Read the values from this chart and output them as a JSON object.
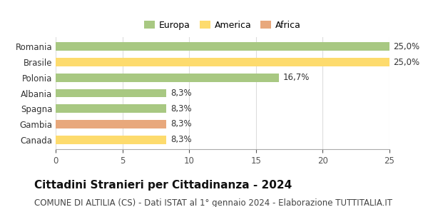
{
  "categories": [
    "Canada",
    "Gambia",
    "Spagna",
    "Albania",
    "Polonia",
    "Brasile",
    "Romania"
  ],
  "values": [
    8.3,
    8.3,
    8.3,
    8.3,
    16.7,
    25.0,
    25.0
  ],
  "colors": [
    "#FDDB6D",
    "#E8A87C",
    "#A8C882",
    "#A8C882",
    "#A8C882",
    "#FDDB6D",
    "#A8C882"
  ],
  "labels": [
    "8,3%",
    "8,3%",
    "8,3%",
    "8,3%",
    "16,7%",
    "25,0%",
    "25,0%"
  ],
  "legend": [
    {
      "label": "Europa",
      "color": "#A8C882"
    },
    {
      "label": "America",
      "color": "#FDDB6D"
    },
    {
      "label": "Africa",
      "color": "#E8A87C"
    }
  ],
  "xlim": [
    0,
    25
  ],
  "xticks": [
    0,
    5,
    10,
    15,
    20,
    25
  ],
  "title": "Cittadini Stranieri per Cittadinanza - 2024",
  "subtitle": "COMUNE DI ALTILIA (CS) - Dati ISTAT al 1° gennaio 2024 - Elaborazione TUTTITALIA.IT",
  "title_fontsize": 11,
  "subtitle_fontsize": 8.5,
  "label_fontsize": 8.5,
  "tick_fontsize": 8.5,
  "legend_fontsize": 9,
  "bar_height": 0.55,
  "background_color": "#ffffff"
}
